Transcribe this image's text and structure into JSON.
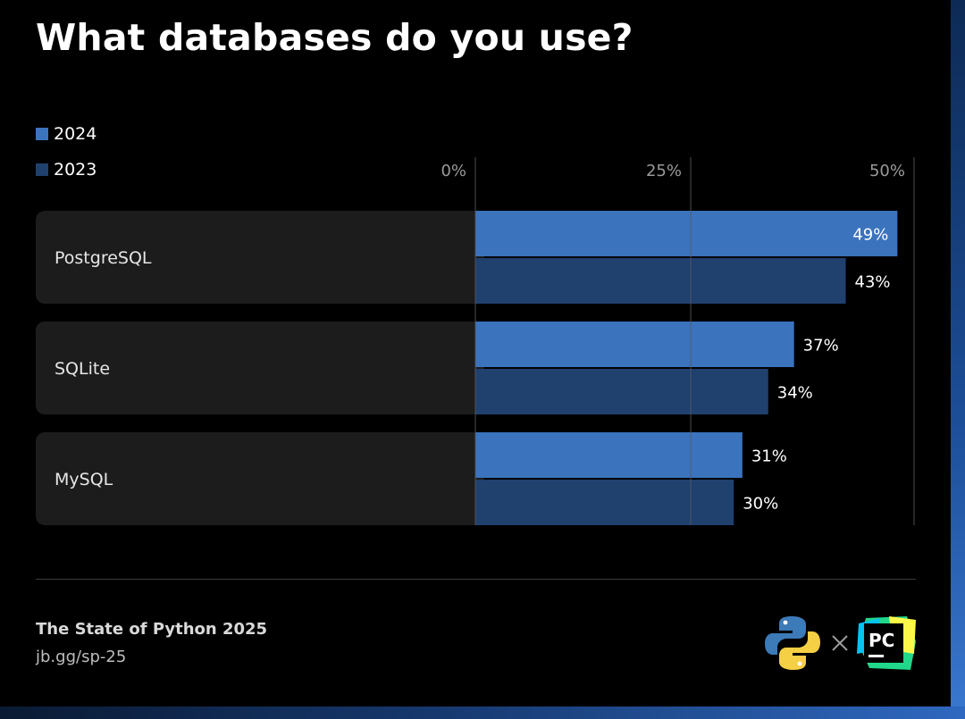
{
  "title": "What databases do you use?",
  "legend": [
    {
      "label": "2024",
      "color": "#3b73bd"
    },
    {
      "label": "2023",
      "color": "#20406e"
    }
  ],
  "colors": {
    "row_background": "#1c1c1c",
    "gridline": "#5a5a5a",
    "tick_label": "#9a9a9a",
    "value_label": "#ffffff",
    "category_label": "#e6e6e6"
  },
  "footer": {
    "source": "The State of Python 2025",
    "link": "jb.gg/sp-25",
    "logos": [
      "python-logo-icon",
      "times-icon",
      "pycharm-logo-icon"
    ],
    "pycharm_text": "PC"
  },
  "chart_data": {
    "type": "bar",
    "orientation": "horizontal",
    "title": "What databases do you use?",
    "categories": [
      "PostgreSQL",
      "SQLite",
      "MySQL"
    ],
    "series": [
      {
        "name": "2024",
        "values": [
          49,
          37,
          31
        ],
        "labels": [
          "49%",
          "37%",
          "31%"
        ]
      },
      {
        "name": "2023",
        "values": [
          43,
          34,
          30
        ],
        "labels": [
          "43%",
          "34%",
          "30%"
        ]
      }
    ],
    "xlim": [
      0,
      50
    ],
    "ticks": [
      0,
      25,
      50
    ],
    "tick_labels": [
      "0%",
      "25%",
      "50%"
    ],
    "grid": true,
    "legend_position": "top-left",
    "unit": "%"
  }
}
